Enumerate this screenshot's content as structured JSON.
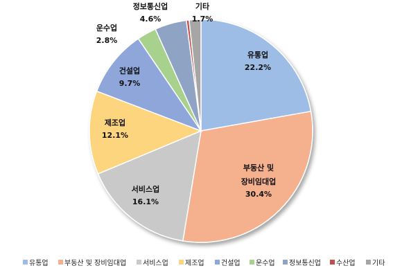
{
  "chart_data": {
    "type": "pie",
    "categories": [
      "유통업",
      "부동산 및 장비임대업",
      "서비스업",
      "제조업",
      "건설업",
      "운수업",
      "정보통신업",
      "수산업",
      "기타"
    ],
    "values": [
      22.2,
      30.4,
      16.1,
      12.1,
      9.7,
      2.8,
      4.6,
      0.4,
      1.7
    ],
    "percent_labels": [
      "22.2%",
      "30.4%",
      "16.1%",
      "12.1%",
      "9.7%",
      "2.8%",
      "4.6%",
      "",
      "1.7%"
    ],
    "label_lines": [
      [
        "유통업"
      ],
      [
        "부동산 및",
        "장비임대업"
      ],
      [
        "서비스업"
      ],
      [
        "제조업"
      ],
      [
        "건설업"
      ],
      [
        "운수업"
      ],
      [
        "정보통신업"
      ],
      [],
      [
        "기타"
      ]
    ],
    "colors": [
      "#9dbde6",
      "#f5b08e",
      "#c9c9c9",
      "#fcd57e",
      "#8ea6d9",
      "#a9d18e",
      "#8fa3c4",
      "#c0504d",
      "#a6a6a6"
    ],
    "legend": [
      "유통업",
      "부동산 및 장비임대업",
      "서비스업",
      "제조업",
      "건설업",
      "운수업",
      "정보통신업",
      "수산업",
      "기타"
    ],
    "legend_position": "bottom",
    "start": "12 o'clock",
    "direction": "clockwise"
  }
}
